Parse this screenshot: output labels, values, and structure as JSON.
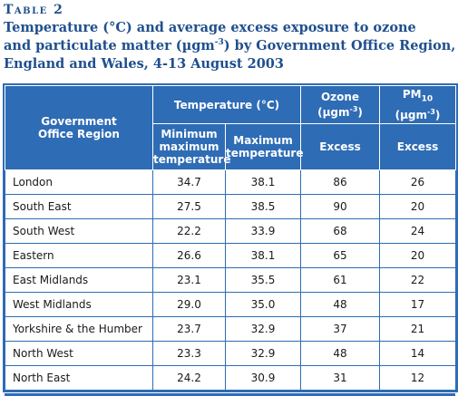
{
  "caption": {
    "table_label": "Table 2",
    "title_line1": "Temperature (°C) and average excess exposure to ozone",
    "title_line2_pre": "and particulate matter (µgm",
    "title_line2_sup": "-3",
    "title_line2_post": ") by Government Office Region,",
    "title_line3": "England and Wales, 4-13 August 2003"
  },
  "table": {
    "header": {
      "region": [
        "Government",
        "Office Region"
      ],
      "temperature_group": "Temperature (°C)",
      "min_max_temp": [
        "Minimum",
        "maximum",
        "temperature"
      ],
      "max_temp": [
        "Maximum",
        "temperature"
      ],
      "ozone": "Ozone",
      "ozone_unit_pre": "(µgm",
      "ozone_unit_sup": "-3",
      "ozone_unit_post": ")",
      "pm_pre": "PM",
      "pm_sub": "10",
      "pm_unit_pre": "(µgm",
      "pm_unit_sup": "-3",
      "pm_unit_post": ")",
      "ozone_excess": "Excess",
      "pm_excess": "Excess"
    },
    "rows": [
      {
        "region": "London",
        "min_max": "34.7",
        "max": "38.1",
        "ozone": "86",
        "pm10": "26"
      },
      {
        "region": "South East",
        "min_max": "27.5",
        "max": "38.5",
        "ozone": "90",
        "pm10": "20"
      },
      {
        "region": "South West",
        "min_max": "22.2",
        "max": "33.9",
        "ozone": "68",
        "pm10": "24"
      },
      {
        "region": "Eastern",
        "min_max": "26.6",
        "max": "38.1",
        "ozone": "65",
        "pm10": "20"
      },
      {
        "region": "East Midlands",
        "min_max": "23.1",
        "max": "35.5",
        "ozone": "61",
        "pm10": "22"
      },
      {
        "region": "West Midlands",
        "min_max": "29.0",
        "max": "35.0",
        "ozone": "48",
        "pm10": "17"
      },
      {
        "region": "Yorkshire & the Humber",
        "min_max": "23.7",
        "max": "32.9",
        "ozone": "37",
        "pm10": "21"
      },
      {
        "region": "North West",
        "min_max": "23.3",
        "max": "32.9",
        "ozone": "48",
        "pm10": "14"
      },
      {
        "region": "North East",
        "min_max": "24.2",
        "max": "30.9",
        "ozone": "31",
        "pm10": "12"
      }
    ]
  },
  "colors": {
    "accent": "#2e6cb5",
    "title": "#1f4f8e"
  }
}
